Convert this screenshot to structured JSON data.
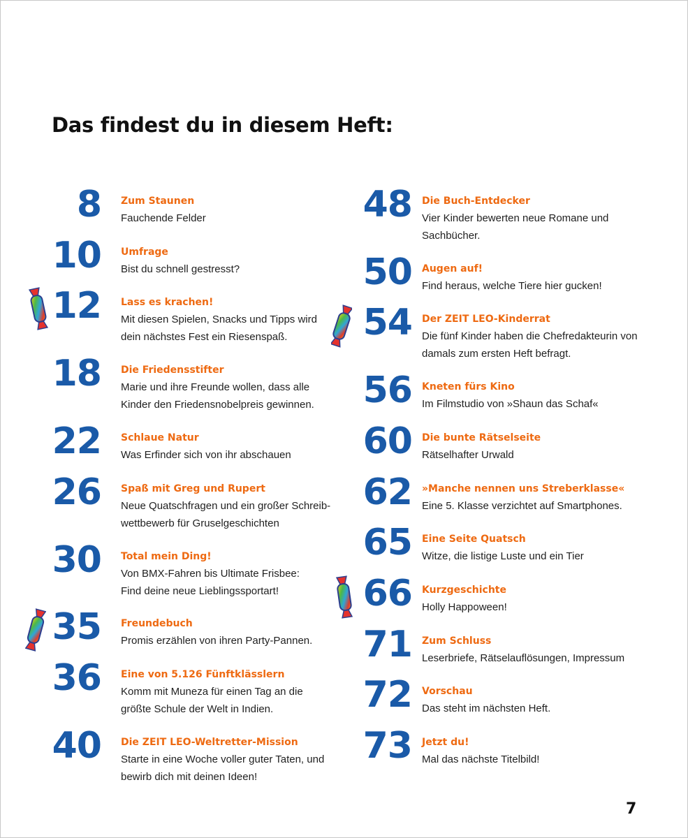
{
  "title": "Das findest du in diesem Heft:",
  "page_number": "7",
  "colors": {
    "number": "#1a5aa8",
    "heading": "#ee6a12",
    "text": "#1f1f1f"
  },
  "left": [
    {
      "number": "8",
      "heading": "Zum Staunen",
      "desc": [
        "Fauchende Felder"
      ]
    },
    {
      "number": "10",
      "heading": "Umfrage",
      "desc": [
        "Bist du schnell gestresst?"
      ]
    },
    {
      "number": "12",
      "heading": "Lass es krachen!",
      "desc": [
        "Mit diesen Spielen, Snacks und Tipps wird",
        "dein nächstes Fest ein Riesenspaß."
      ]
    },
    {
      "number": "18",
      "heading": "Die Friedensstifter",
      "desc": [
        "Marie und ihre Freunde wollen, dass alle",
        "Kinder den Friedensnobelpreis gewinnen."
      ]
    },
    {
      "number": "22",
      "heading": "Schlaue Natur",
      "desc": [
        "Was Erfinder sich von ihr abschauen"
      ]
    },
    {
      "number": "26",
      "heading": "Spaß mit Greg und Rupert",
      "desc": [
        "Neue Quatschfragen und ein großer Schreib-",
        "wettbewerb für Gruselgeschichten"
      ]
    },
    {
      "number": "30",
      "heading": "Total mein Ding!",
      "desc": [
        "Von BMX-Fahren bis Ultimate Frisbee:",
        "Find deine neue Lieblingssportart!"
      ]
    },
    {
      "number": "35",
      "heading": "Freundebuch",
      "desc": [
        "Promis erzählen von ihren Party-Pannen."
      ]
    },
    {
      "number": "36",
      "heading": "Eine von 5.126 Fünftklässlern",
      "desc": [
        "Komm mit Muneza für einen Tag an die",
        "größte Schule der Welt in Indien."
      ]
    },
    {
      "number": "40",
      "heading": "Die ZEIT LEO-Weltretter-Mission",
      "desc": [
        "Starte in eine Woche voller guter Taten, und",
        "bewirb dich mit deinen Ideen!"
      ]
    }
  ],
  "right": [
    {
      "number": "48",
      "heading": "Die Buch-Entdecker",
      "desc": [
        "Vier Kinder bewerten neue Romane und",
        "Sachbücher."
      ]
    },
    {
      "number": "50",
      "heading": "Augen auf!",
      "desc": [
        "Find heraus, welche Tiere hier gucken!"
      ]
    },
    {
      "number": "54",
      "heading": "Der ZEIT LEO-Kinderrat",
      "desc": [
        "Die fünf Kinder haben die Chefredakteurin von",
        "damals zum ersten Heft befragt."
      ]
    },
    {
      "number": "56",
      "heading": "Kneten fürs Kino",
      "desc": [
        "Im Filmstudio von »Shaun das Schaf«"
      ]
    },
    {
      "number": "60",
      "heading": "Die bunte Rätselseite",
      "desc": [
        "Rätselhafter Urwald"
      ]
    },
    {
      "number": "62",
      "heading": "»Manche nennen uns Streberklasse«",
      "desc": [
        "Eine 5. Klasse verzichtet auf Smartphones."
      ]
    },
    {
      "number": "65",
      "heading": "Eine Seite Quatsch",
      "desc": [
        "Witze, die listige Luste und ein Tier"
      ]
    },
    {
      "number": "66",
      "heading": "Kurzgeschichte",
      "desc": [
        "Holly Happoween!"
      ]
    },
    {
      "number": "71",
      "heading": "Zum Schluss",
      "desc": [
        "Leserbriefe, Rätselauflösungen, Impressum"
      ]
    },
    {
      "number": "72",
      "heading": "Vorschau",
      "desc": [
        "Das steht im nächsten Heft."
      ]
    },
    {
      "number": "73",
      "heading": "Jetzt du!",
      "desc": [
        "Mal das nächste Titelbild!"
      ]
    }
  ],
  "candies": [
    {
      "name": "candy-icon-12"
    },
    {
      "name": "candy-icon-35"
    },
    {
      "name": "candy-icon-54"
    },
    {
      "name": "candy-icon-66"
    }
  ]
}
